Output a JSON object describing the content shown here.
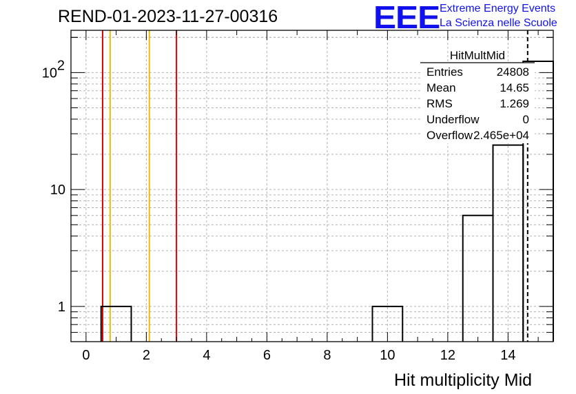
{
  "header": {
    "run_title": "REND-01-2023-11-27-00316",
    "logo_text": "EEE",
    "logo_line1": "Extreme Energy Events",
    "logo_line2": "La Scienza nelle Scuole"
  },
  "stats_box": {
    "name": "HitMultMid",
    "rows": [
      {
        "label": "Entries",
        "value": "24808"
      },
      {
        "label": "Mean",
        "value": "14.65"
      },
      {
        "label": "RMS",
        "value": "1.269"
      },
      {
        "label": "Underflow",
        "value": "0"
      },
      {
        "label": "Overflow",
        "value": "2.465e+04"
      }
    ]
  },
  "chart_data": {
    "type": "bar",
    "histogram": true,
    "xlabel": "Hit multiplicity Mid",
    "ylabel": "",
    "log_y": true,
    "xlim": [
      -0.5,
      15.5
    ],
    "ylim": [
      0.5,
      230
    ],
    "x_ticks": [
      0,
      2,
      4,
      6,
      8,
      10,
      12,
      14
    ],
    "y_ticks": [
      {
        "value": 1,
        "label": "1"
      },
      {
        "value": 10,
        "label": "10"
      },
      {
        "value": 100,
        "label": "10",
        "exponent": "2"
      }
    ],
    "grid": true,
    "bins": [
      {
        "center": 1,
        "value": 1
      },
      {
        "center": 10,
        "value": 1
      },
      {
        "center": 13,
        "value": 6
      },
      {
        "center": 14,
        "value": 24
      },
      {
        "center": 15,
        "value": 125
      }
    ],
    "vertical_lines": [
      {
        "x": 0.55,
        "color": "#dd0000",
        "style": "solid"
      },
      {
        "x": 0.8,
        "color": "#f5b800",
        "style": "solid"
      },
      {
        "x": 2.1,
        "color": "#f5b800",
        "style": "solid"
      },
      {
        "x": 3.0,
        "color": "#dd0000",
        "style": "solid"
      },
      {
        "x": 14.65,
        "color": "#000000",
        "style": "dashed"
      }
    ],
    "colors": {
      "histogram": "#000000",
      "grid": "#b0b0b0",
      "frame": "#000000"
    }
  }
}
